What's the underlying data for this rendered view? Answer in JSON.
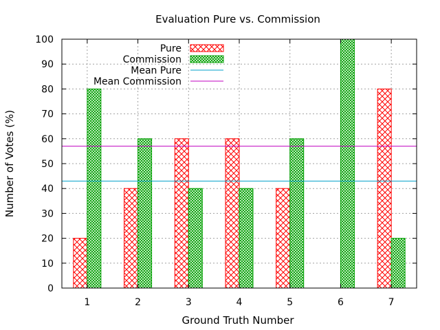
{
  "chart_data": {
    "type": "bar",
    "title": "Evaluation Pure vs. Commission",
    "xlabel": "Ground Truth Number",
    "ylabel": "Number of Votes (%)",
    "categories": [
      "1",
      "2",
      "3",
      "4",
      "5",
      "6",
      "7"
    ],
    "ylim": [
      0,
      100
    ],
    "yticks": [
      0,
      10,
      20,
      30,
      40,
      50,
      60,
      70,
      80,
      90,
      100
    ],
    "grid": true,
    "legend_position": "top-left",
    "series": [
      {
        "name": "Pure",
        "values": [
          20,
          40,
          60,
          60,
          40,
          0,
          80
        ],
        "color": "#ff0000",
        "pattern": "crosshatch"
      },
      {
        "name": "Commission",
        "values": [
          80,
          60,
          40,
          40,
          60,
          100,
          20
        ],
        "color": "#00a000",
        "pattern": "dense-crosshatch"
      }
    ],
    "reference_lines": [
      {
        "name": "Mean Pure",
        "value": 43,
        "color": "#00a0c8"
      },
      {
        "name": "Mean Commission",
        "value": 57,
        "color": "#c000c0"
      }
    ]
  }
}
